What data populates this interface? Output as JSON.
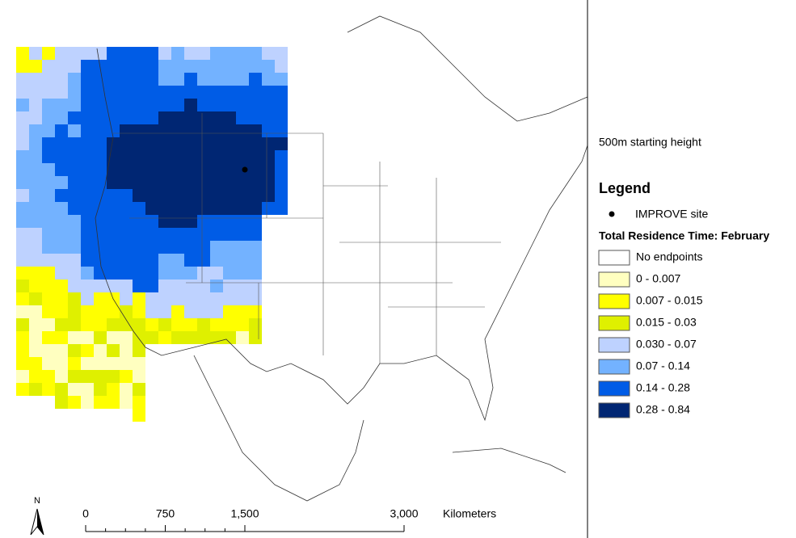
{
  "header": {
    "subtitle": "500m starting height"
  },
  "legend": {
    "title": "Legend",
    "site_label": "IMPROVE site",
    "ramp_title": "Total Residence Time: February",
    "classes": [
      {
        "label": "No endpoints",
        "color": "#ffffff"
      },
      {
        "label": "0 - 0.007",
        "color": "#ffffc0"
      },
      {
        "label": "0.007 - 0.015",
        "color": "#ffff00"
      },
      {
        "label": "0.015 - 0.03",
        "color": "#dff000"
      },
      {
        "label": "0.030 - 0.07",
        "color": "#bed2ff"
      },
      {
        "label": "0.07 - 0.14",
        "color": "#73b2ff"
      },
      {
        "label": "0.14 - 0.28",
        "color": "#005ce6"
      },
      {
        "label": "0.28 - 0.84",
        "color": "#002673"
      }
    ]
  },
  "scale_bar": {
    "lim": [
      0,
      3000
    ],
    "ticks": [
      0,
      750,
      {
        "value": 1500,
        "label": "1,500"
      },
      {
        "value": 3000,
        "label": "3,000"
      }
    ],
    "unit": "Kilometers"
  },
  "north_label": "N"
}
